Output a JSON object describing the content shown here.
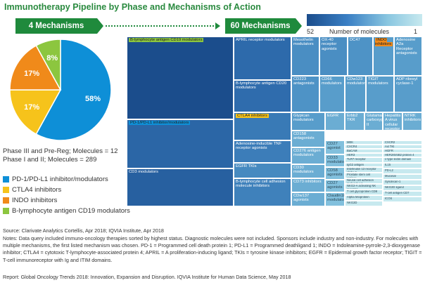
{
  "title": "Immunotherapy Pipeline by Phase and Mechanisms of Action",
  "left_box": "4 Mechanisms",
  "right_box": "60 Mechanisms",
  "legend": {
    "label": "Number of molecules",
    "min": "52",
    "max": "1"
  },
  "phase3_text": "Phase III and Pre-Reg; Molecules = 12",
  "phase12_text": "Phase I and II; Molecules = 289",
  "colors": {
    "pd1": "#0e8fd7",
    "ctla4": "#f6c31b",
    "indo": "#f08a1a",
    "b_lymph": "#8cc63f"
  },
  "chart_data": [
    {
      "type": "pie",
      "values": [
        58,
        17,
        17,
        8
      ],
      "labels": [
        "58%",
        "17%",
        "17%",
        "8%"
      ],
      "legend_entries": [
        "PD-1/PD-L1 inhibitor/modulators",
        "CTLA4 inhibitors",
        "INDO inhibitors",
        "B-lymphocyte antigen CD19 modulators"
      ],
      "colors": [
        "#0e8fd7",
        "#f6c31b",
        "#f08a1a",
        "#8cc63f"
      ]
    },
    {
      "type": "treemap",
      "value_range": [
        1,
        52
      ],
      "cells": [
        {
          "label": "B-lymphocyte antigen CD19 modulators",
          "value": 52,
          "highlight": "#8cc63f"
        },
        {
          "label": "PD-1/PD-L1 inhibitor/modulators",
          "value": 22,
          "highlight": "#0e8fd7"
        },
        {
          "label": "CD3 modulators",
          "value": 28
        },
        {
          "label": "APRIL receptor modulators",
          "value": 18
        },
        {
          "label": "B-lymphocyte antigen CD20 modulators",
          "value": 16
        },
        {
          "label": "CTLA4 inhibitors",
          "value": 11,
          "highlight": "#f6c31b"
        },
        {
          "label": "Adenosine-inducible TNF receptor agonists",
          "value": 10
        },
        {
          "label": "EGFR TKIs",
          "value": 7
        },
        {
          "label": "B-lymphocyte cell adhesion molecule inhibitors",
          "value": 9
        },
        {
          "label": "Mesothelin modulators",
          "value": 6
        },
        {
          "label": "OX-40 receptor agonists",
          "value": 6
        },
        {
          "label": "DC47",
          "value": 5
        },
        {
          "label": "INDO inhibitors",
          "value": 4,
          "highlight": "#f08a1a"
        },
        {
          "label": "Adenosine A2a Receptor antagonists",
          "value": 4
        },
        {
          "label": "CD223 antagonists",
          "value": 5
        },
        {
          "label": "CD66 modulators",
          "value": 4
        },
        {
          "label": "CDw123 modulators",
          "value": 4
        },
        {
          "label": "TIGIT modulators",
          "value": 4
        },
        {
          "label": "ADP ribosyl cyclase-1",
          "value": 4
        },
        {
          "label": "Glypican modulators",
          "value": 4
        },
        {
          "label": "EGFR",
          "value": 3
        },
        {
          "label": "Erbb2 TKR",
          "value": 3
        },
        {
          "label": "Glutamate carboxypeptidase II",
          "value": 3
        },
        {
          "label": "Hepatitis A virus cellular receptor 2",
          "value": 3
        },
        {
          "label": "NTRK inhibitors",
          "value": 3
        },
        {
          "label": "CD158 antagonists",
          "value": 3
        },
        {
          "label": "CD276 antigen modulators",
          "value": 3
        },
        {
          "label": "CD30 modulators",
          "value": 3
        },
        {
          "label": "CD73 inhibitors",
          "value": 3
        },
        {
          "label": "CDw137 agonists",
          "value": 3
        },
        {
          "label": "CD27 agonist",
          "value": 2
        },
        {
          "label": "CD33 modulators",
          "value": 2
        },
        {
          "label": "CD58 agonists",
          "value": 2
        },
        {
          "label": "CD27 agonists",
          "value": 2
        },
        {
          "label": "Claudin18 modulators",
          "value": 2
        },
        {
          "label": "MEK",
          "value": 1
        },
        {
          "label": "CXCR2",
          "value": 1
        },
        {
          "label": "CXCR4",
          "value": 1
        },
        {
          "label": "Axl TKI",
          "value": 1
        },
        {
          "label": "BaCAM",
          "value": 1
        },
        {
          "label": "HGFR",
          "value": 1
        },
        {
          "label": "HER3",
          "value": 1
        },
        {
          "label": "HER2/ErbB2 protein 4",
          "value": 1
        },
        {
          "label": "TLR7 receptor",
          "value": 1
        },
        {
          "label": "c-type lectin domain",
          "value": 1
        },
        {
          "label": "IgG2 antigen",
          "value": 1
        },
        {
          "label": "IL15",
          "value": 1
        },
        {
          "label": "Interleukin 13 receptor alpha 2",
          "value": 1
        },
        {
          "label": "PD-L2",
          "value": 1
        },
        {
          "label": "Prostate stem cell antigen",
          "value": 1
        },
        {
          "label": "Mucosal",
          "value": 1
        },
        {
          "label": "Neural cell adhesion molecule L1",
          "value": 1
        },
        {
          "label": "Syndecan-1",
          "value": 1
        },
        {
          "label": "NKG2-A activating NK receptor",
          "value": 1
        },
        {
          "label": "NKG2D ligand",
          "value": 1
        },
        {
          "label": "T cell glycoprotein CD8",
          "value": 1
        },
        {
          "label": "T-cell antigen CD7",
          "value": 1
        },
        {
          "label": "Alpha fetoprotein",
          "value": 1
        },
        {
          "label": "ICOS",
          "value": 1
        },
        {
          "label": "NKG2D",
          "value": 1
        }
      ]
    }
  ],
  "footer": {
    "source": "Source: Clarivate Analytics Cortellis, Apr 2018; IQVIA Institute, Apr 2018",
    "notes": "Notes: Data query included immuno-oncology therapies sorted by highest status. Diagnostic molecules were not included. Sponsors include industry and non-industry. For molecules with multiple mechanisms, the first listed mechanism was chosen. PD-1 = Programmed cell death protein 1; PD-L1 = Programmed deathligand 1; INDO = Indoleamine-pyrrole-2,3-dioxygenase inhibitor; CTLA4 = cytotoxic T-lymphocyte-associated protein 4; APRIL = A proliferation-inducing ligand; TKIs = tyrosine kinase inhibitors; EGFR = Epidermal growth factor receptor; TIGIT = T-cell immunoreceptor with Ig and ITIM domains.",
    "report": "Report: Global Oncology Trends 2018: Innovation, Expansion and Disruption. IQVIA Institute for Human Data Science, May 2018"
  }
}
